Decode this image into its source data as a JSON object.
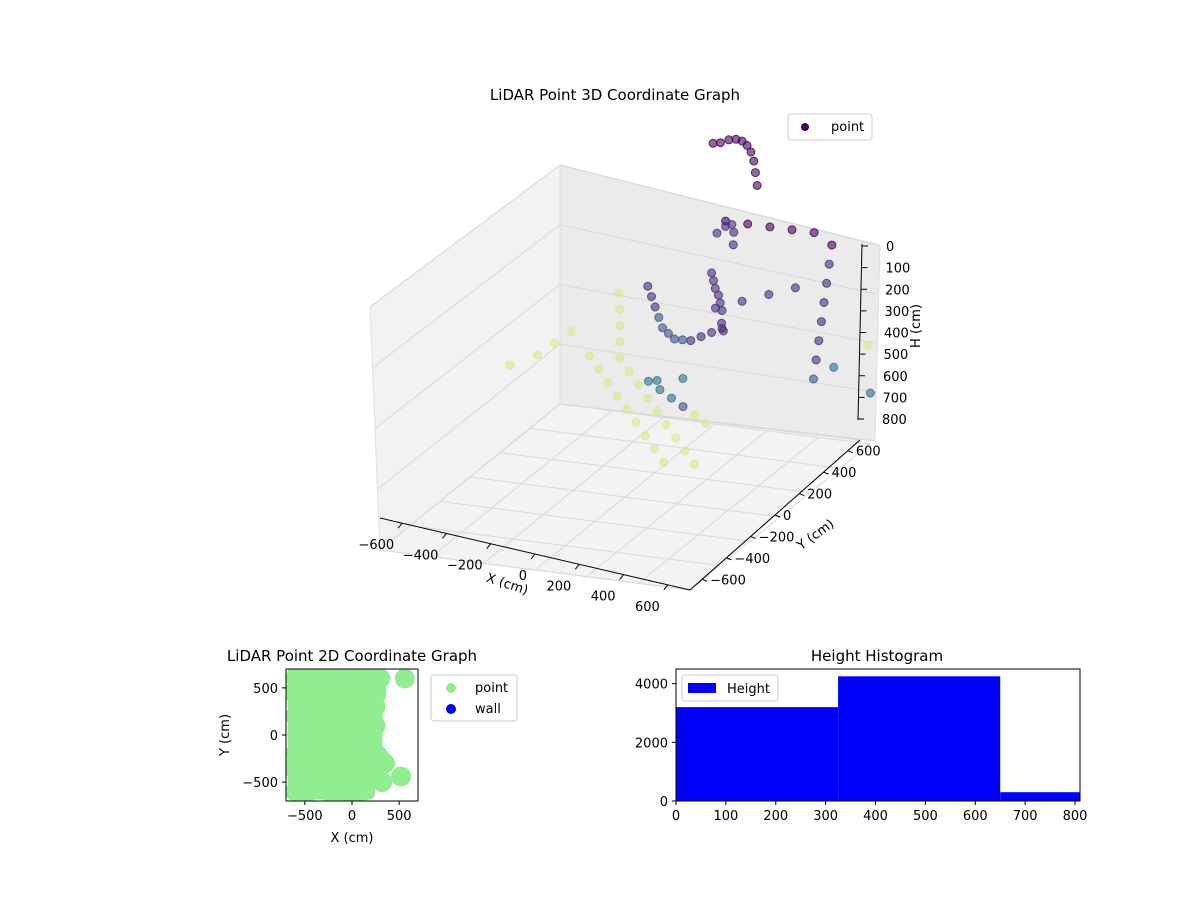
{
  "chart_data": [
    {
      "type": "scatter",
      "projection": "3d",
      "title": "LiDAR Point 3D Coordinate Graph",
      "xlabel": "X (cm)",
      "ylabel": "Y (cm)",
      "zlabel": "H (cm)",
      "xlim": [
        -700,
        700
      ],
      "ylim": [
        -700,
        700
      ],
      "zlim": [
        800,
        0
      ],
      "xticks": [
        "−600",
        "−400",
        "−200",
        "0",
        "200",
        "400",
        "600"
      ],
      "yticks": [
        "−600",
        "−400",
        "−200",
        "0",
        "200",
        "400",
        "600"
      ],
      "zticks": [
        "0",
        "100",
        "200",
        "300",
        "400",
        "500",
        "600",
        "700",
        "800"
      ],
      "grid": true,
      "legend": {
        "position": "top-right",
        "entries": [
          {
            "label": "point",
            "color": "#440154"
          }
        ]
      },
      "colormap": "viridis",
      "series": [
        {
          "name": "point",
          "points": [
            [
              -380,
              -150,
              120
            ],
            [
              -340,
              -120,
              110
            ],
            [
              -300,
              -90,
              95
            ],
            [
              -260,
              -60,
              85
            ],
            [
              -220,
              -30,
              80
            ],
            [
              -180,
              0,
              80
            ],
            [
              -140,
              30,
              85
            ],
            [
              -100,
              60,
              95
            ],
            [
              -60,
              90,
              110
            ],
            [
              -20,
              110,
              130
            ],
            [
              -120,
              40,
              250
            ],
            [
              -90,
              60,
              230
            ],
            [
              -60,
              80,
              220
            ],
            [
              -30,
              100,
              230
            ],
            [
              0,
              120,
              250
            ],
            [
              -50,
              80,
              320
            ],
            [
              -20,
              100,
              330
            ],
            [
              10,
              120,
              340
            ],
            [
              40,
              130,
              350
            ],
            [
              70,
              150,
              360
            ],
            [
              100,
              170,
              370
            ],
            [
              130,
              190,
              390
            ],
            [
              160,
              210,
              400
            ],
            [
              -350,
              -80,
              400
            ],
            [
              -300,
              -40,
              410
            ],
            [
              -250,
              0,
              420
            ],
            [
              -200,
              40,
              430
            ],
            [
              -150,
              80,
              440
            ],
            [
              -100,
              120,
              440
            ],
            [
              -50,
              160,
              440
            ],
            [
              0,
              200,
              430
            ],
            [
              50,
              240,
              420
            ],
            [
              100,
              280,
              400
            ],
            [
              150,
              320,
              380
            ],
            [
              200,
              360,
              360
            ],
            [
              -400,
              -300,
              600
            ],
            [
              -300,
              -200,
              600
            ],
            [
              -200,
              -100,
              600
            ],
            [
              -100,
              0,
              600
            ],
            [
              0,
              100,
              600
            ],
            [
              100,
              200,
              600
            ],
            [
              200,
              300,
              600
            ],
            [
              300,
              400,
              600
            ],
            [
              400,
              500,
              600
            ],
            [
              -500,
              -200,
              580
            ],
            [
              -400,
              -100,
              580
            ],
            [
              -300,
              0,
              580
            ],
            [
              -200,
              100,
              580
            ],
            [
              -100,
              200,
              580
            ],
            [
              0,
              300,
              580
            ],
            [
              100,
              400,
              580
            ],
            [
              200,
              500,
              580
            ],
            [
              300,
              600,
              580
            ],
            [
              -250,
              -350,
              650
            ],
            [
              -150,
              -250,
              640
            ],
            [
              -50,
              -150,
              630
            ],
            [
              50,
              -50,
              620
            ],
            [
              150,
              50,
              610
            ],
            [
              250,
              150,
              600
            ],
            [
              -600,
              -500,
              520
            ],
            [
              -550,
              -450,
              540
            ],
            [
              -500,
              -400,
              560
            ],
            [
              -450,
              -350,
              580
            ],
            [
              -650,
              300,
              500
            ],
            [
              -620,
              100,
              520
            ],
            [
              -640,
              -100,
              540
            ],
            [
              -660,
              -300,
              560
            ],
            [
              600,
              650,
              100
            ],
            [
              610,
              600,
              150
            ],
            [
              620,
              550,
              200
            ],
            [
              630,
              500,
              250
            ],
            [
              640,
              450,
              300
            ],
            [
              650,
              400,
              350
            ],
            [
              660,
              350,
              400
            ],
            [
              670,
              300,
              450
            ],
            [
              500,
              650,
              80
            ],
            [
              400,
              650,
              80
            ],
            [
              300,
              650,
              80
            ],
            [
              200,
              650,
              80
            ],
            [
              100,
              650,
              80
            ],
            [
              520,
              620,
              200
            ],
            [
              420,
              620,
              220
            ],
            [
              320,
              620,
              240
            ],
            [
              220,
              620,
              260
            ],
            [
              560,
              -500,
              560
            ],
            [
              420,
              -620,
              640
            ],
            [
              600,
              -700,
              700
            ],
            [
              -200,
              -620,
              700
            ],
            [
              -320,
              -660,
              720
            ]
          ]
        }
      ]
    },
    {
      "type": "scatter",
      "title": "LiDAR Point 2D Coordinate Graph",
      "xlabel": "X (cm)",
      "ylabel": "Y (cm)",
      "xlim": [
        -700,
        700
      ],
      "ylim": [
        -700,
        700
      ],
      "xticks": [
        "−500",
        "0",
        "500"
      ],
      "yticks": [
        "500",
        "0",
        "−500"
      ],
      "legend": {
        "position": "right",
        "entries": [
          {
            "label": "point",
            "color": "#90ee90"
          },
          {
            "label": "wall",
            "color": "#0000ff"
          }
        ]
      },
      "series": [
        {
          "name": "point",
          "color": "#90ee90",
          "points": [
            [
              -600,
              600
            ],
            [
              -550,
              500
            ],
            [
              -500,
              400
            ],
            [
              -600,
              200
            ],
            [
              -580,
              0
            ],
            [
              -600,
              -200
            ],
            [
              -560,
              -400
            ],
            [
              -600,
              -600
            ],
            [
              -450,
              650
            ],
            [
              -400,
              550
            ],
            [
              -350,
              450
            ],
            [
              -450,
              300
            ],
            [
              -420,
              100
            ],
            [
              -450,
              -100
            ],
            [
              -400,
              -300
            ],
            [
              -450,
              -500
            ],
            [
              -300,
              650
            ],
            [
              -250,
              550
            ],
            [
              -200,
              450
            ],
            [
              -300,
              300
            ],
            [
              -250,
              100
            ],
            [
              -300,
              -100
            ],
            [
              -250,
              -300
            ],
            [
              -300,
              -500
            ],
            [
              -150,
              650
            ],
            [
              -100,
              550
            ],
            [
              -50,
              450
            ],
            [
              -150,
              300
            ],
            [
              -100,
              100
            ],
            [
              -150,
              -100
            ],
            [
              -100,
              -300
            ],
            [
              -150,
              -500
            ],
            [
              0,
              650
            ],
            [
              50,
              550
            ],
            [
              100,
              450
            ],
            [
              0,
              300
            ],
            [
              50,
              100
            ],
            [
              0,
              -100
            ],
            [
              50,
              -300
            ],
            [
              0,
              -500
            ],
            [
              150,
              650
            ],
            [
              200,
              550
            ],
            [
              150,
              450
            ],
            [
              200,
              300
            ],
            [
              150,
              100
            ],
            [
              200,
              -100
            ],
            [
              150,
              -300
            ],
            [
              100,
              -600
            ],
            [
              250,
              500
            ],
            [
              250,
              300
            ],
            [
              250,
              100
            ],
            [
              250,
              -200
            ],
            [
              250,
              -400
            ],
            [
              300,
              600
            ],
            [
              300,
              -250
            ],
            [
              350,
              -300
            ],
            [
              560,
              600
            ],
            [
              520,
              -440
            ],
            [
              320,
              -500
            ],
            [
              -200,
              -650
            ],
            [
              -50,
              -650
            ],
            [
              -500,
              -650
            ],
            [
              -620,
              450
            ],
            [
              -620,
              -350
            ]
          ]
        },
        {
          "name": "wall",
          "color": "#0000ff",
          "points": []
        }
      ]
    },
    {
      "type": "bar",
      "title": "Height Histogram",
      "xlabel": "",
      "ylabel": "",
      "xlim": [
        0,
        810
      ],
      "ylim": [
        0,
        4500
      ],
      "xticks": [
        "0",
        "100",
        "200",
        "300",
        "400",
        "500",
        "600",
        "700",
        "800"
      ],
      "yticks": [
        "0",
        "2000",
        "4000"
      ],
      "legend": {
        "position": "top-left",
        "entries": [
          {
            "label": "Height",
            "color": "#0000ff"
          }
        ]
      },
      "series": [
        {
          "name": "Height",
          "color": "#0000ff",
          "bins": [
            {
              "x0": 0,
              "x1": 325,
              "count": 3200
            },
            {
              "x0": 325,
              "x1": 650,
              "count": 4250
            },
            {
              "x0": 650,
              "x1": 810,
              "count": 300
            }
          ]
        }
      ]
    }
  ]
}
